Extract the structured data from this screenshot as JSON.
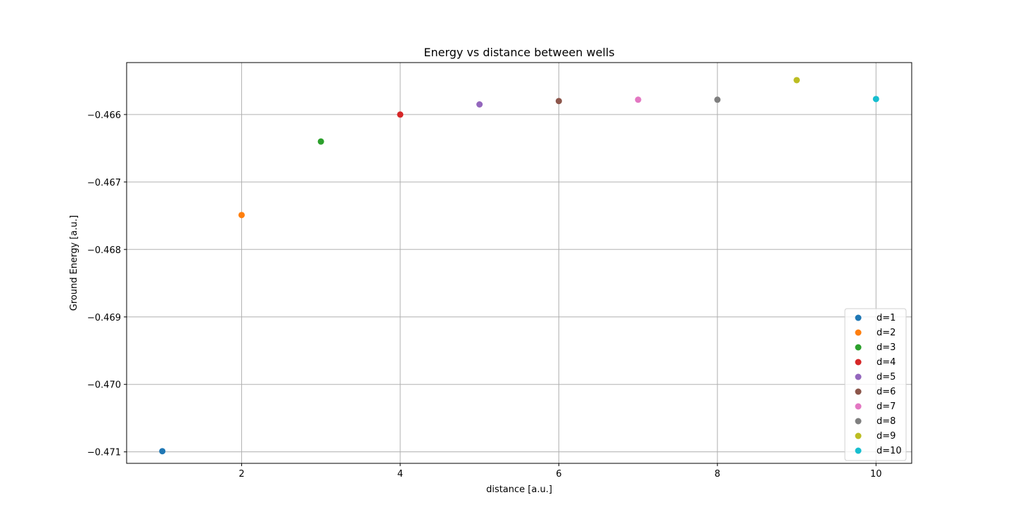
{
  "chart_data": {
    "type": "scatter",
    "title": "Energy vs distance between wells",
    "xlabel": "distance [a.u.]",
    "ylabel": "Ground Energy [a.u.]",
    "xlim": [
      0.55,
      10.45
    ],
    "ylim": [
      -0.47117,
      -0.46523
    ],
    "xticks": [
      2,
      4,
      6,
      8,
      10
    ],
    "xtick_labels": [
      "2",
      "4",
      "6",
      "8",
      "10"
    ],
    "yticks": [
      -0.471,
      -0.47,
      -0.469,
      -0.468,
      -0.467,
      -0.466
    ],
    "ytick_labels": [
      "−0.471",
      "−0.470",
      "−0.469",
      "−0.468",
      "−0.467",
      "−0.466"
    ],
    "grid": true,
    "legend_position": "lower-right",
    "series": [
      {
        "name": "d=1",
        "color": "#1f77b4",
        "x": [
          1
        ],
        "y": [
          -0.47099
        ]
      },
      {
        "name": "d=2",
        "color": "#ff7f0e",
        "x": [
          2
        ],
        "y": [
          -0.46749
        ]
      },
      {
        "name": "d=3",
        "color": "#2ca02c",
        "x": [
          3
        ],
        "y": [
          -0.4664
        ]
      },
      {
        "name": "d=4",
        "color": "#d62728",
        "x": [
          4
        ],
        "y": [
          -0.466
        ]
      },
      {
        "name": "d=5",
        "color": "#9467bd",
        "x": [
          5
        ],
        "y": [
          -0.46585
        ]
      },
      {
        "name": "d=6",
        "color": "#8c564b",
        "x": [
          6
        ],
        "y": [
          -0.4658
        ]
      },
      {
        "name": "d=7",
        "color": "#e377c2",
        "x": [
          7
        ],
        "y": [
          -0.46578
        ]
      },
      {
        "name": "d=8",
        "color": "#7f7f7f",
        "x": [
          8
        ],
        "y": [
          -0.46578
        ]
      },
      {
        "name": "d=9",
        "color": "#bcbd22",
        "x": [
          9
        ],
        "y": [
          -0.46549
        ]
      },
      {
        "name": "d=10",
        "color": "#17becf",
        "x": [
          10
        ],
        "y": [
          -0.46577
        ]
      }
    ]
  }
}
